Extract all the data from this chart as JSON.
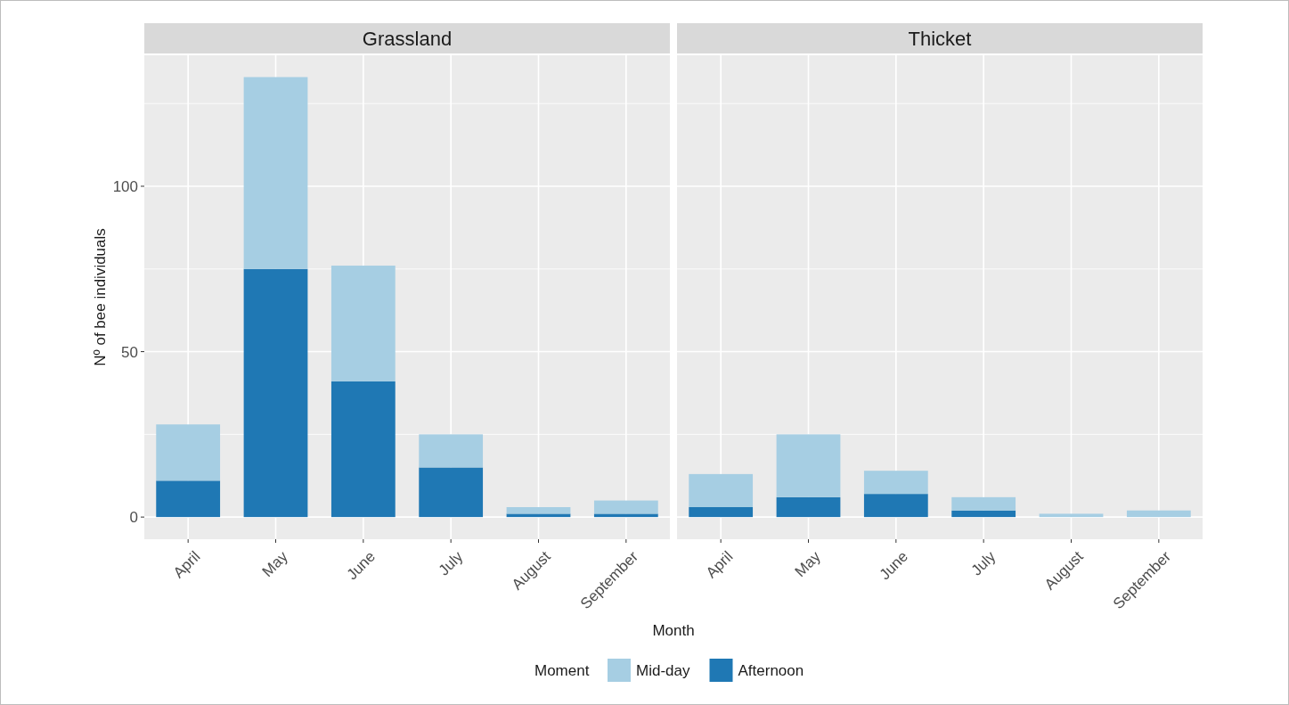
{
  "chart_data": [
    {
      "type": "bar",
      "title": "Grassland",
      "xlabel": "Month",
      "ylabel": "Nº of bee individuals",
      "legend_title": "Moment",
      "legend": "bottom",
      "stacked": true,
      "grid": true,
      "categories": [
        "April",
        "May",
        "June",
        "July",
        "August",
        "September"
      ],
      "ylim": [
        -6.7,
        139.6
      ],
      "yticks": [
        0,
        {
          "value": 25,
          "label": null
        },
        50,
        {
          "value": 75,
          "label": null
        },
        100,
        {
          "value": 125,
          "label": null
        }
      ],
      "series": [
        {
          "name": "Afternoon",
          "color": "#1f78b4",
          "values": [
            11,
            75,
            41,
            15,
            1,
            1
          ]
        },
        {
          "name": "Mid-day",
          "color": "#a6cee3",
          "values": [
            17,
            58,
            35,
            10,
            2,
            4
          ]
        }
      ]
    },
    {
      "type": "bar",
      "title": "Thicket",
      "stacked": true,
      "grid": true,
      "tick_labels": "x",
      "categories": [
        "April",
        "May",
        "June",
        "July",
        "August",
        "September"
      ],
      "ylim": [
        -6.7,
        139.6
      ],
      "yticks": [
        0,
        {
          "value": 25,
          "label": null
        },
        50,
        {
          "value": 75,
          "label": null
        },
        100,
        {
          "value": 125,
          "label": null
        }
      ],
      "series": [
        {
          "color": "#1f78b4",
          "values": [
            3,
            6,
            7,
            2,
            0,
            0
          ]
        },
        {
          "color": "#a6cee3",
          "values": [
            10,
            19,
            7,
            4,
            1,
            2
          ]
        }
      ]
    }
  ]
}
